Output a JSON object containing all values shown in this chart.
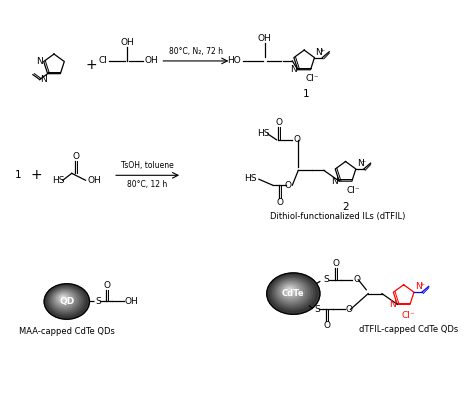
{
  "bg_color": "#ffffff",
  "reaction1_arrow_label_top": "80°C, N₂, 72 h",
  "reaction2_arrow_label_top": "TsOH, toluene",
  "reaction2_arrow_label_bot": "80°C, 12 h",
  "dithiol_label": "Dithiol-functionalized ILs (dTFIL)",
  "maa_label": "MAA-capped CdTe QDs",
  "dtfil_label": "dTFIL-capped CdTe QDs",
  "qd_label": "QD",
  "cdte_label": "CdTe",
  "font_size_main": 6.5,
  "font_size_label": 6.0,
  "font_size_compound": 7.5
}
